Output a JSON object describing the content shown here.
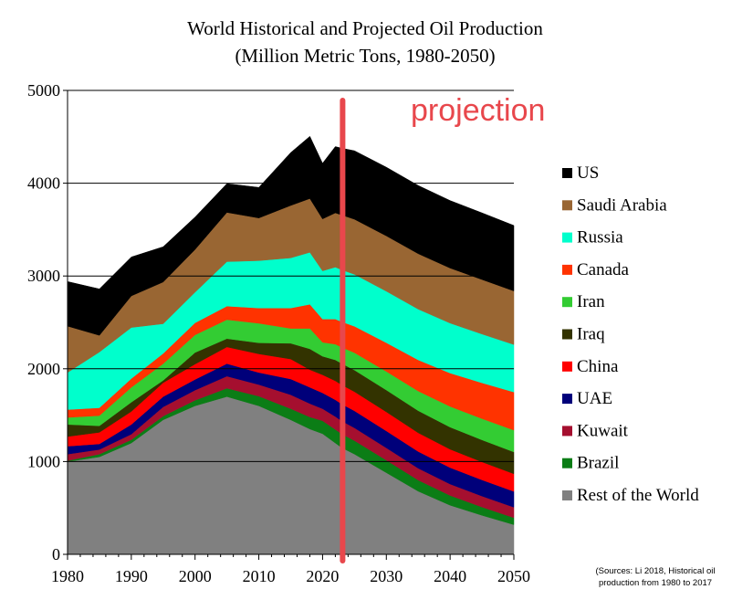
{
  "chart_data": {
    "type": "area",
    "stacked": true,
    "title": "World Historical and Projected Oil Production",
    "subtitle": "(Million  Metric Tons, 1980-2050)",
    "xlabel": "",
    "ylabel": "",
    "xlim": [
      1980,
      2050
    ],
    "ylim": [
      0,
      5000
    ],
    "x_ticks": [
      "1980",
      "1990",
      "2000",
      "2010",
      "2020",
      "2030",
      "2040",
      "2050"
    ],
    "y_ticks": [
      "0",
      "1000",
      "2000",
      "3000",
      "4000",
      "5000"
    ],
    "projection_start_year": 2023,
    "projection_label": "projection",
    "source_note": [
      "(Sources: Li 2018, Historical oil",
      "production from 1980 to 2017"
    ],
    "years": [
      1980,
      1985,
      1990,
      1995,
      2000,
      2005,
      2010,
      2015,
      2018,
      2020,
      2022,
      2023,
      2025,
      2030,
      2035,
      2040,
      2045,
      2050
    ],
    "series": [
      {
        "name": "Rest of the World",
        "color": "#808080",
        "values": [
          1000,
          1050,
          1200,
          1450,
          1600,
          1700,
          1600,
          1450,
          1350,
          1300,
          1200,
          1150,
          1080,
          880,
          680,
          530,
          420,
          320
        ]
      },
      {
        "name": "Brazil",
        "color": "#0b7d16",
        "values": [
          10,
          30,
          35,
          40,
          60,
          90,
          105,
          120,
          130,
          140,
          145,
          148,
          145,
          135,
          120,
          105,
          90,
          75
        ]
      },
      {
        "name": "Kuwait",
        "color": "#a50f2f",
        "values": [
          70,
          50,
          60,
          100,
          110,
          130,
          125,
          150,
          145,
          130,
          140,
          140,
          138,
          133,
          128,
          123,
          118,
          113
        ]
      },
      {
        "name": "UAE",
        "color": "#00007a",
        "values": [
          85,
          60,
          105,
          110,
          115,
          135,
          130,
          170,
          175,
          170,
          180,
          182,
          183,
          182,
          180,
          177,
          174,
          170
        ]
      },
      {
        "name": "China",
        "color": "#ff0000",
        "values": [
          105,
          125,
          140,
          150,
          165,
          180,
          200,
          215,
          190,
          195,
          205,
          207,
          207,
          205,
          202,
          198,
          194,
          190
        ]
      },
      {
        "name": "Iraq",
        "color": "#333300",
        "values": [
          130,
          70,
          100,
          25,
          125,
          90,
          120,
          170,
          225,
          200,
          225,
          230,
          232,
          236,
          238,
          238,
          237,
          235
        ]
      },
      {
        "name": "Iran",
        "color": "#33cc33",
        "values": [
          75,
          110,
          160,
          180,
          190,
          205,
          210,
          160,
          220,
          150,
          170,
          175,
          188,
          200,
          212,
          223,
          230,
          236
        ]
      },
      {
        "name": "Canada",
        "color": "#ff3300",
        "values": [
          85,
          85,
          95,
          110,
          130,
          145,
          165,
          220,
          260,
          250,
          270,
          275,
          285,
          310,
          335,
          360,
          385,
          410
        ]
      },
      {
        "name": "Russia",
        "color": "#00ffcc",
        "values": [
          400,
          600,
          550,
          320,
          330,
          480,
          510,
          540,
          560,
          520,
          560,
          560,
          560,
          555,
          548,
          538,
          526,
          512
        ]
      },
      {
        "name": "Saudi Arabia",
        "color": "#996633",
        "values": [
          500,
          180,
          340,
          450,
          460,
          530,
          460,
          565,
          580,
          560,
          585,
          590,
          593,
          596,
          597,
          594,
          588,
          578
        ]
      },
      {
        "name": "US",
        "color": "#000000",
        "values": [
          480,
          500,
          420,
          380,
          350,
          310,
          330,
          570,
          670,
          600,
          715,
          720,
          738,
          740,
          735,
          727,
          718,
          705
        ]
      }
    ],
    "legend_order": [
      "US",
      "Saudi Arabia",
      "Russia",
      "Canada",
      "Iran",
      "Iraq",
      "China",
      "UAE",
      "Kuwait",
      "Brazil",
      "Rest of the World"
    ],
    "legend_position": "right"
  }
}
